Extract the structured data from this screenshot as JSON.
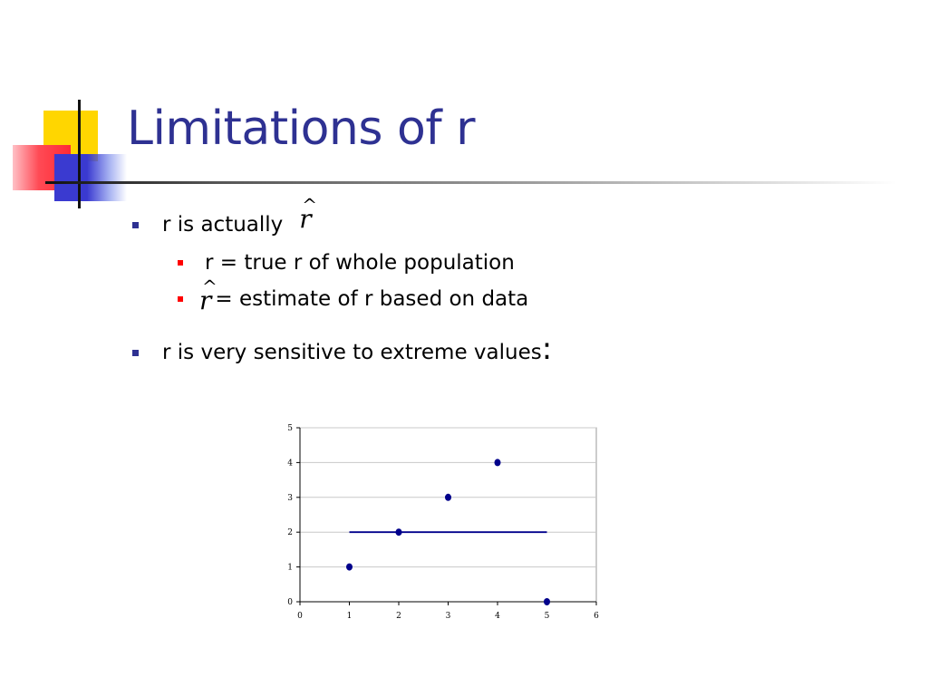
{
  "slide": {
    "title": "Limitations of r",
    "bullets": [
      {
        "text": "r is actually",
        "symbol": "r̂"
      },
      {
        "text": "r = true r of whole population"
      },
      {
        "symbol": "r̂",
        "text": " = estimate of r based on data"
      },
      {
        "text": "r is very sensitive to extreme values",
        "trailing": ":"
      }
    ]
  },
  "colors": {
    "title": "#2e3192",
    "bullet_level1": "#2e3192",
    "bullet_level2": "#ff0000",
    "point": "#00008b",
    "line": "#00008b"
  },
  "chart_data": {
    "type": "scatter",
    "x": [
      1,
      2,
      3,
      4,
      5
    ],
    "y": [
      1,
      2,
      3,
      4,
      0
    ],
    "xlim": [
      0,
      6
    ],
    "ylim": [
      0,
      5
    ],
    "xticks": [
      0,
      1,
      2,
      3,
      4,
      5,
      6
    ],
    "yticks": [
      0,
      1,
      2,
      3,
      4,
      5
    ],
    "grid": true,
    "fit_line": {
      "x": [
        1,
        5
      ],
      "y": [
        2,
        2
      ]
    },
    "title": "",
    "xlabel": "",
    "ylabel": ""
  }
}
